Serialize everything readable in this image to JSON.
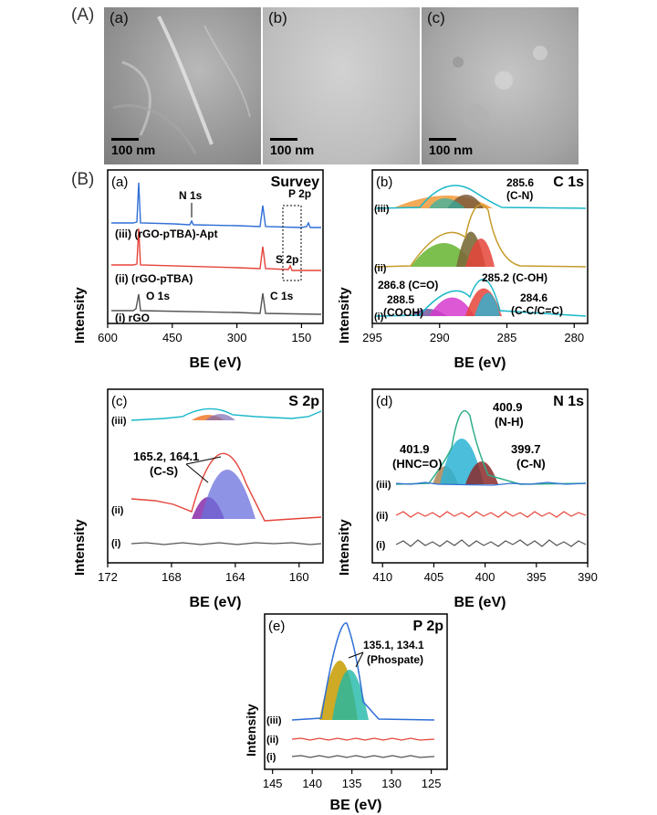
{
  "figure": {
    "label_A": "(A)",
    "label_B": "(B)"
  },
  "sem": [
    {
      "tag": "(a)",
      "scale": "100 nm"
    },
    {
      "tag": "(b)",
      "scale": "100 nm"
    },
    {
      "tag": "(c)",
      "scale": "100 nm"
    }
  ],
  "colors": {
    "blue": "#2f6fd6",
    "red": "#e5443a",
    "gray": "#555555",
    "cyan": "#19b8c9"
  },
  "chart_data": [
    {
      "id": "survey",
      "type": "line",
      "panel": "(a)",
      "title": "Survey",
      "xlabel": "BE (eV)",
      "ylabel": "Intensity",
      "xlim": [
        600,
        100
      ],
      "xticks": [
        "600",
        "450",
        "300",
        "150"
      ],
      "xtick_values": [
        600,
        450,
        300,
        150
      ],
      "series": [
        {
          "name": "(iii) (rGO-pTBA)-Apt",
          "peaks_eV": [
            532,
            400,
            285,
            133
          ]
        },
        {
          "name": "(ii) (rGO-pTBA)",
          "peaks_eV": [
            532,
            285,
            164
          ]
        },
        {
          "name": "(i) rGO",
          "peaks_eV": [
            532,
            285
          ]
        }
      ],
      "annotations": [
        "N 1s",
        "P 2p",
        "S 2p",
        "O 1s",
        "C 1s"
      ]
    },
    {
      "id": "c1s",
      "type": "line",
      "panel": "(b)",
      "title": "C 1s",
      "xlabel": "BE (eV)",
      "ylabel": "Intensity",
      "xlim": [
        295,
        279
      ],
      "xticks": [
        "295",
        "290",
        "285",
        "280"
      ],
      "xtick_values": [
        295,
        290,
        285,
        280
      ],
      "series_labels": [
        "(iii)",
        "(ii)",
        "(i)"
      ],
      "peaks_eV": [
        284.6,
        285.2,
        286.8,
        288.5,
        285.6
      ],
      "annotations": [
        "285.6",
        "(C-N)",
        "286.8 (C=O)",
        "285.2 (C-OH)",
        "288.5",
        "(COOH)",
        "284.6",
        "(C-C/C=C)"
      ]
    },
    {
      "id": "s2p",
      "type": "line",
      "panel": "(c)",
      "title": "S 2p",
      "xlabel": "BE (eV)",
      "ylabel": "Intensity",
      "xlim": [
        172,
        158.5
      ],
      "xticks": [
        "172",
        "168",
        "164",
        "160"
      ],
      "xtick_values": [
        172,
        168,
        164,
        160
      ],
      "series_labels": [
        "(iii)",
        "(ii)",
        "(i)"
      ],
      "peaks_eV": [
        165.2,
        164.1
      ],
      "annotations": [
        "165.2, 164.1",
        "(C-S)"
      ]
    },
    {
      "id": "n1s",
      "type": "line",
      "panel": "(d)",
      "title": "N 1s",
      "xlabel": "BE (eV)",
      "ylabel": "Intensity",
      "xlim": [
        411,
        390
      ],
      "xticks": [
        "410",
        "405",
        "400",
        "395",
        "390"
      ],
      "xtick_values": [
        410,
        405,
        400,
        395,
        390
      ],
      "series_labels": [
        "(iii)",
        "(ii)",
        "(i)"
      ],
      "peaks_eV": [
        401.9,
        400.9,
        399.7
      ],
      "annotations": [
        "400.9",
        "(N-H)",
        "401.9",
        "(HNC=O)",
        "399.7",
        "(C-N)"
      ]
    },
    {
      "id": "p2p",
      "type": "line",
      "panel": "(e)",
      "title": "P 2p",
      "xlabel": "BE (eV)",
      "ylabel": "Intensity",
      "xlim": [
        146,
        123
      ],
      "xticks": [
        "145",
        "140",
        "135",
        "130",
        "125"
      ],
      "xtick_values": [
        145,
        140,
        135,
        130,
        125
      ],
      "series_labels": [
        "(iii)",
        "(ii)",
        "(i)"
      ],
      "peaks_eV": [
        135.1,
        134.1
      ],
      "annotations": [
        "135.1, 134.1",
        "(Phospate)"
      ]
    }
  ]
}
